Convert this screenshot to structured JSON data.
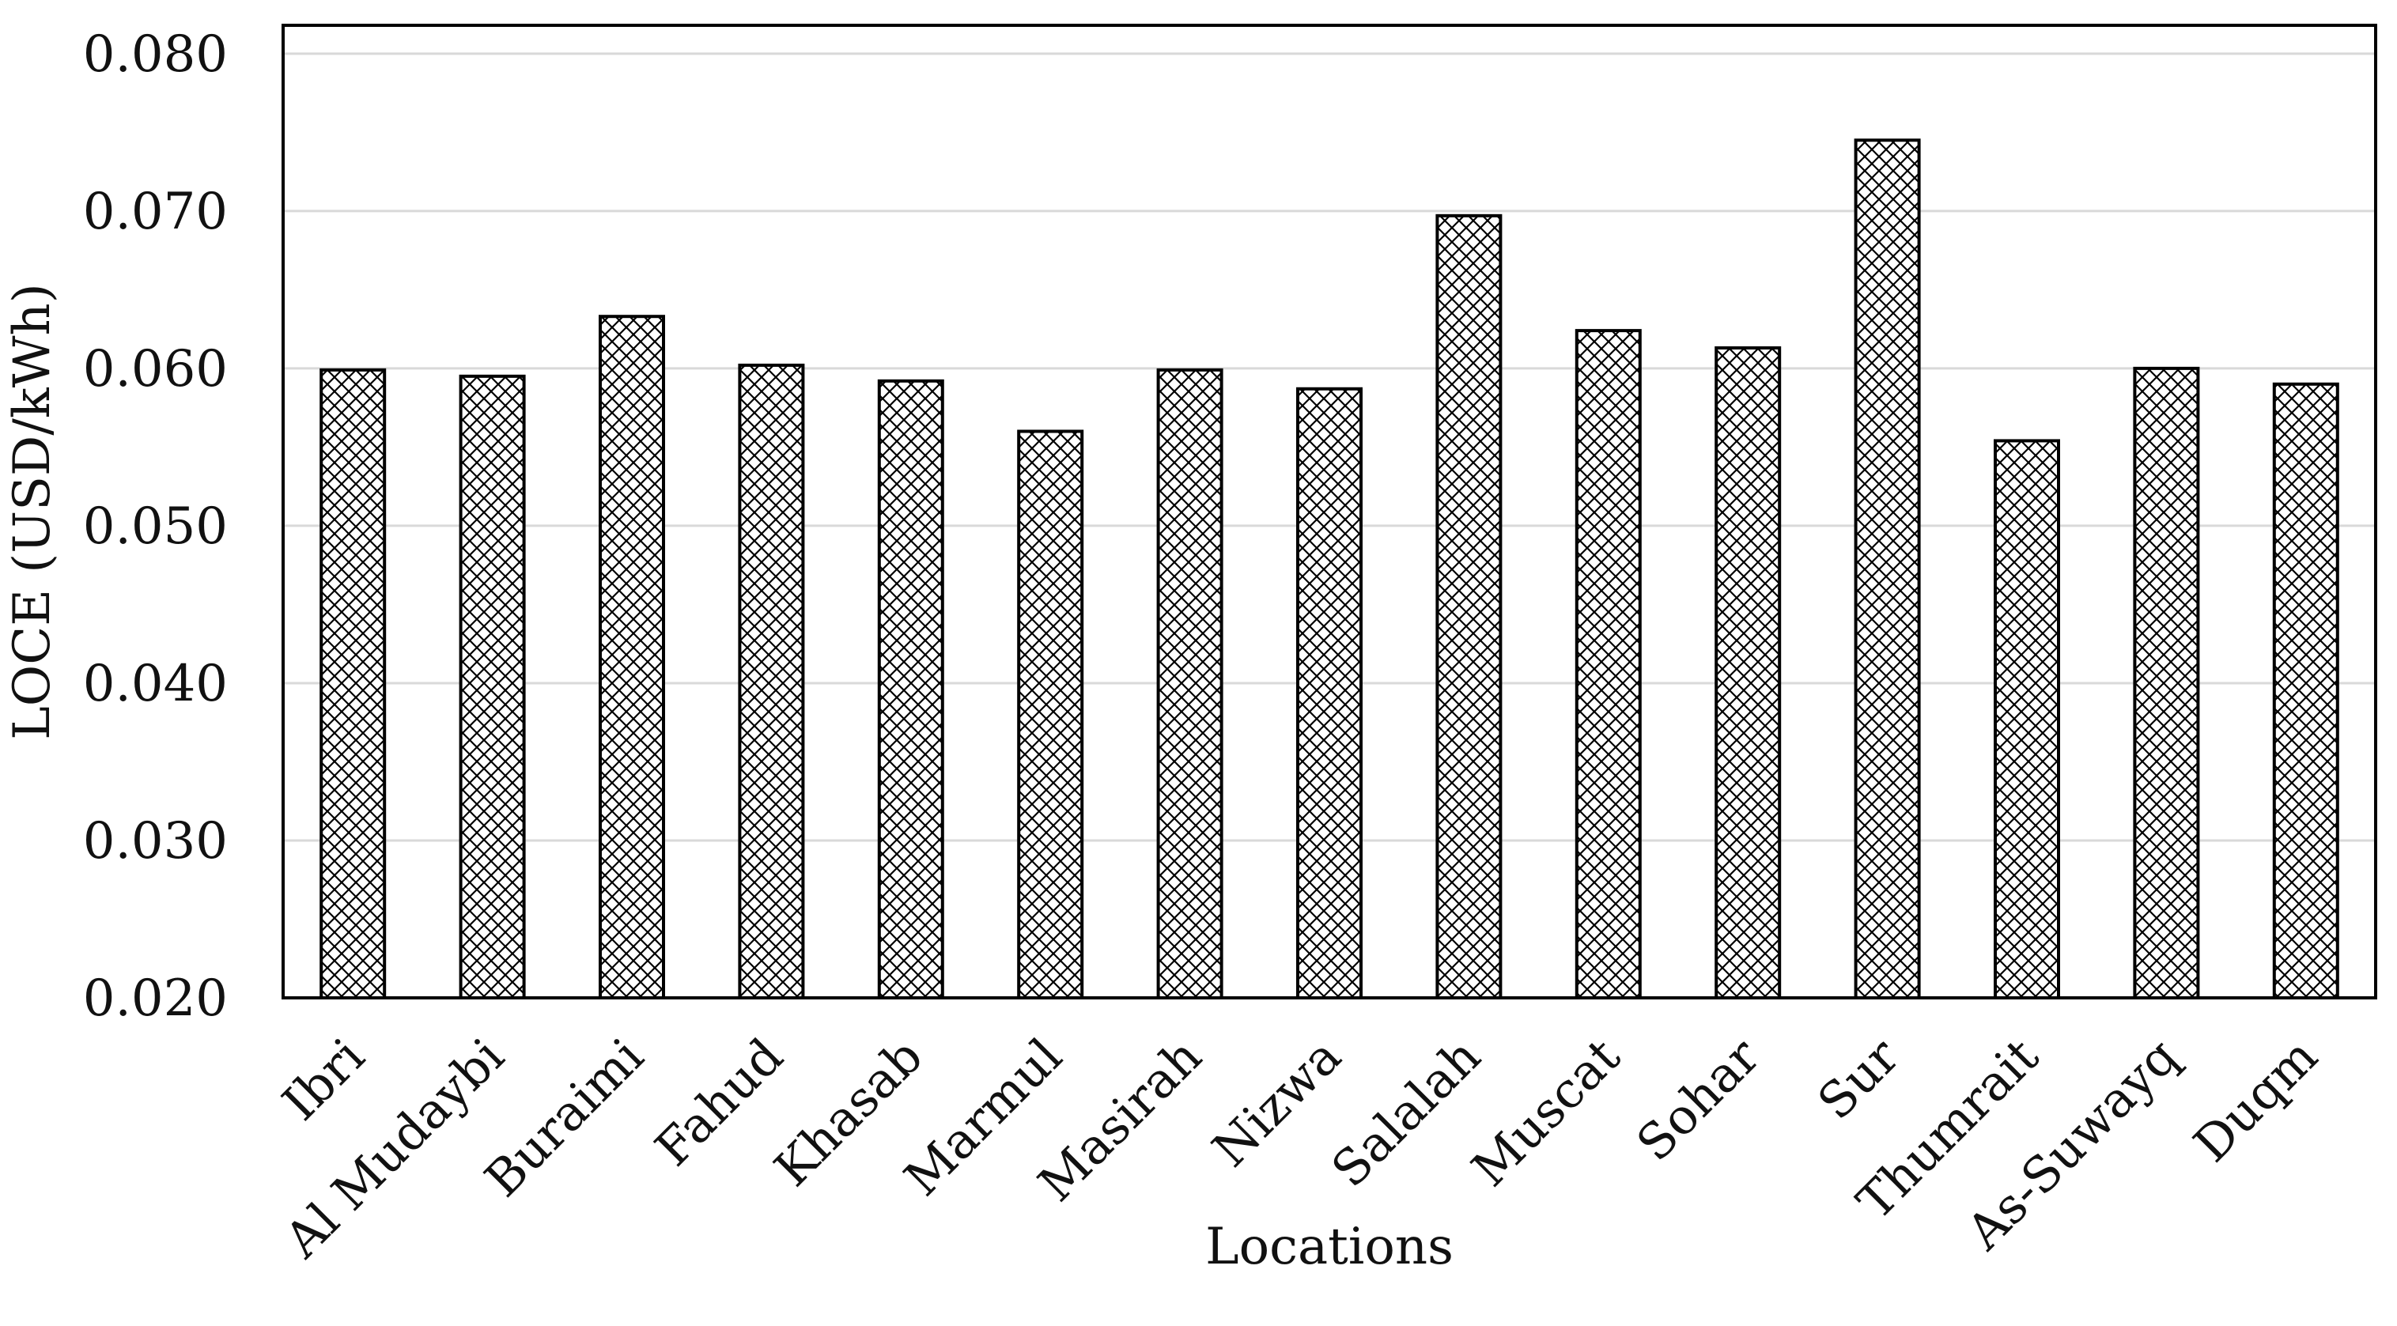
{
  "chart_data": {
    "type": "bar",
    "title": "",
    "xlabel": "Locations",
    "ylabel": "LOCE (USD/kWh)",
    "ylim": [
      0.02,
      0.08
    ],
    "yticks": [
      "0.020",
      "0.030",
      "0.040",
      "0.050",
      "0.060",
      "0.070",
      "0.080"
    ],
    "ytick_values": [
      0.02,
      0.03,
      0.04,
      0.05,
      0.06,
      0.07,
      0.08
    ],
    "grid": true,
    "legend": "none",
    "bar_fill": "crosshatch",
    "colors": {
      "bar_stroke": "#000000",
      "grid": "#d9d9d9",
      "axis": "#000000",
      "text": "#111111",
      "background": "#ffffff"
    },
    "categories": [
      "Ibri",
      "Al Mudaybi",
      "Buraimi",
      "Fahud",
      "Khasab",
      "Marmul",
      "Masirah",
      "Nizwa",
      "Salalah",
      "Muscat",
      "Sohar",
      "Sur",
      "Thumrait",
      "As-Suwayq",
      "Duqm"
    ],
    "values": [
      0.0599,
      0.0595,
      0.0633,
      0.0602,
      0.0592,
      0.056,
      0.0599,
      0.0587,
      0.0697,
      0.0624,
      0.0613,
      0.0745,
      0.0554,
      0.06,
      0.059
    ]
  }
}
